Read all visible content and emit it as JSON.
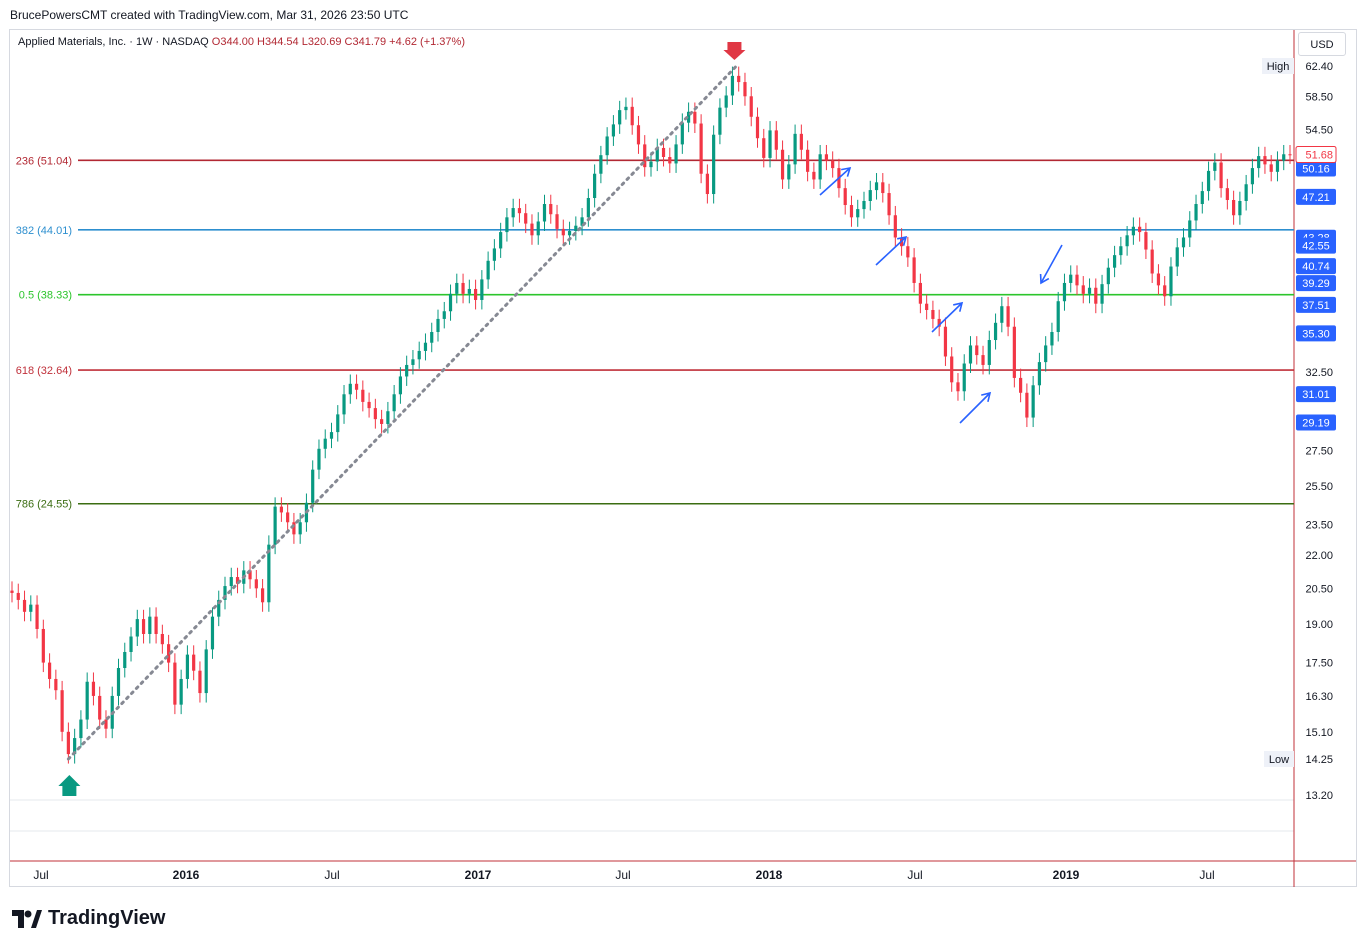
{
  "header": {
    "credit": "BrucePowersCMT created with TradingView.com, Mar 31, 2026 23:50 UTC",
    "symbol": "Applied Materials, Inc. · 1W · NASDAQ",
    "ohlc": "O344.00 H344.54 L320.69 C341.79 +4.62 (+1.37%)",
    "currency": "USD"
  },
  "logo": {
    "text": "TradingView",
    "icon": "tradingview-logo-icon"
  },
  "colors": {
    "up": "#089981",
    "down": "#f23645",
    "fib236": "#b22833",
    "fib382": "#2d8fcf",
    "fib50": "#2cc52c",
    "fib618": "#c0303a",
    "fib786": "#3b6d12",
    "arrow": "#2962ff"
  },
  "chart_data": {
    "type": "candlestick",
    "title": "Applied Materials, Inc. · 1W · NASDAQ",
    "x_tick_labels": [
      "Jul",
      "2016",
      "Jul",
      "2017",
      "Jul",
      "2018",
      "Jul",
      "2019",
      "Jul"
    ],
    "y_tick_labels": [
      "62.40",
      "58.50",
      "54.50",
      "50.16",
      "47.21",
      "43.28",
      "42.55",
      "40.74",
      "39.29",
      "37.51",
      "35.30",
      "32.50",
      "31.01",
      "29.19",
      "27.50",
      "25.50",
      "23.50",
      "22.00",
      "20.50",
      "19.00",
      "17.50",
      "16.30",
      "15.10",
      "14.25",
      "13.20"
    ],
    "fib_levels": [
      {
        "label": "236 (51.04)",
        "value": 51.04
      },
      {
        "label": "382 (44.01)",
        "value": 44.01
      },
      {
        "label": "0.5 (38.33)",
        "value": 38.33
      },
      {
        "label": "618 (32.64)",
        "value": 32.64
      },
      {
        "label": "786 (24.55)",
        "value": 24.55
      }
    ],
    "high_label": "High",
    "high_value": "62.40",
    "low_label": "Low",
    "low_value": "14.25",
    "last_price": "51.68",
    "price_badges": [
      "50.16",
      "47.21",
      "43.28",
      "42.55",
      "40.74",
      "39.29",
      "37.51",
      "35.30",
      "31.01",
      "29.19"
    ],
    "trendline": {
      "from": {
        "date": "2015-08",
        "value": 14.25
      },
      "to": {
        "date": "2018-03",
        "value": 62.4
      }
    },
    "weekly_closes_approx": [
      20.3,
      20.0,
      19.5,
      19.8,
      18.8,
      17.5,
      16.9,
      16.5,
      15.1,
      14.4,
      14.9,
      15.5,
      16.8,
      16.3,
      15.5,
      15.2,
      16.3,
      17.3,
      17.9,
      18.5,
      19.2,
      18.6,
      19.3,
      18.6,
      18.2,
      17.5,
      16.0,
      16.9,
      17.8,
      17.2,
      16.4,
      18.0,
      19.3,
      20.0,
      20.6,
      21.0,
      20.7,
      21.3,
      20.9,
      20.5,
      19.9,
      22.5,
      24.4,
      24.1,
      23.6,
      23.0,
      23.6,
      24.6,
      26.4,
      27.6,
      28.2,
      28.6,
      29.7,
      31.0,
      31.7,
      31.3,
      30.5,
      30.1,
      29.4,
      29.1,
      29.9,
      31.0,
      32.2,
      33.0,
      33.4,
      34.0,
      34.6,
      35.4,
      36.4,
      37.0,
      38.4,
      39.3,
      38.4,
      38.8,
      37.9,
      39.6,
      41.2,
      42.3,
      43.8,
      45.2,
      46.1,
      45.6,
      44.6,
      43.5,
      44.8,
      46.5,
      45.5,
      44.1,
      43.5,
      43.9,
      44.4,
      45.2,
      47.1,
      49.6,
      51.6,
      53.7,
      55.1,
      56.8,
      57.2,
      55.0,
      52.8,
      50.3,
      50.9,
      52.4,
      51.4,
      50.7,
      52.8,
      55.3,
      56.6,
      55.2,
      49.6,
      47.5,
      53.9,
      57.1,
      58.6,
      61.1,
      60.3,
      58.5,
      56.0,
      53.5,
      51.3,
      54.4,
      52.2,
      49.0,
      50.6,
      54.0,
      52.2,
      49.8,
      49.0,
      51.7,
      51.0,
      50.2,
      48.1,
      46.4,
      45.2,
      46.0,
      46.8,
      47.9,
      48.7,
      47.6,
      45.4,
      43.3,
      42.5,
      41.5,
      39.3,
      37.6,
      37.1,
      36.4,
      35.8,
      33.6,
      31.8,
      31.2,
      33.1,
      34.4,
      33.7,
      33.0,
      34.8,
      36.1,
      37.4,
      35.8,
      32.1,
      31.1,
      29.5,
      31.6,
      33.2,
      34.4,
      35.4,
      37.8,
      39.3,
      40.0,
      39.1,
      38.4,
      38.9,
      37.6,
      39.2,
      40.6,
      41.7,
      42.5,
      43.5,
      44.3,
      43.8,
      42.2,
      40.1,
      39.1,
      38.2,
      40.7,
      42.4,
      43.3,
      44.9,
      46.5,
      47.8,
      49.9,
      50.8,
      48.1,
      46.9,
      45.4,
      46.8,
      48.5,
      50.2,
      51.5,
      50.6,
      49.8,
      51.0,
      51.7,
      51.68
    ]
  },
  "annotations": {
    "top_marker": "down-arrow-marker",
    "bottom_marker": "up-arrow-marker",
    "arrows": [
      "blue-arrow-1",
      "blue-arrow-2",
      "blue-arrow-3",
      "blue-arrow-4",
      "blue-arrow-5"
    ]
  }
}
